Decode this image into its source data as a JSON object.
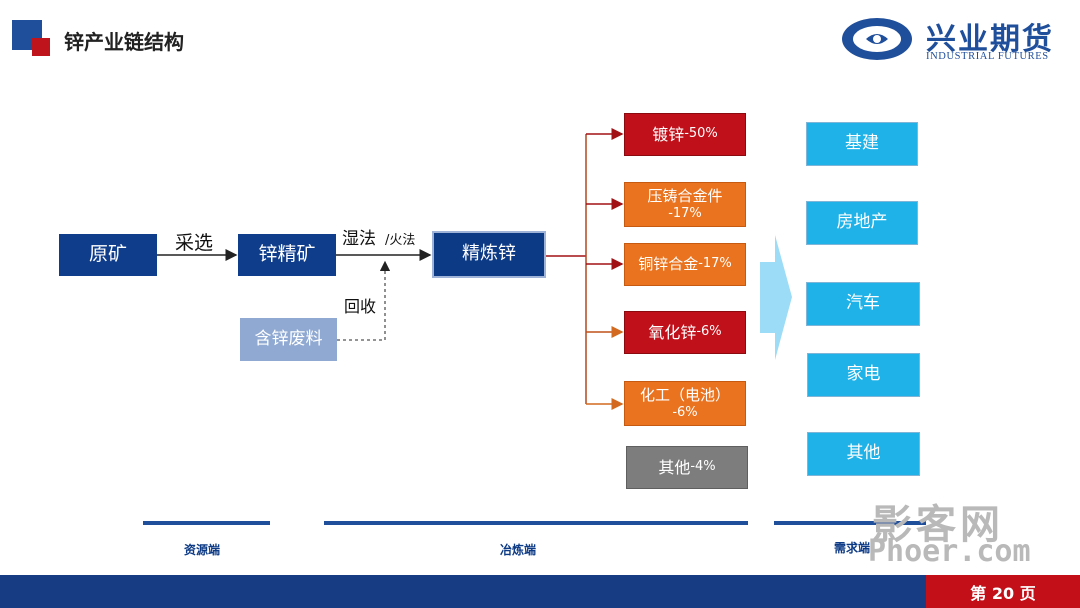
{
  "header": {
    "title": "锌产业链结构",
    "brand_cn": "兴业期货",
    "brand_en": "INDUSTRIAL FUTURES"
  },
  "flow": {
    "raw_ore": "原矿",
    "mining_label": "采选",
    "zinc_concentrate": "锌精矿",
    "wet_process": "湿法",
    "fire_process": "/火法",
    "refined_zinc": "精炼锌",
    "recycle_label": "回收",
    "zinc_scrap": "含锌废料"
  },
  "uses": [
    {
      "label": "镀锌",
      "pct": "-50%"
    },
    {
      "label": "压铸合金件",
      "pct": "-17%"
    },
    {
      "label": "铜锌合金",
      "pct": "-17%"
    },
    {
      "label": "氧化锌",
      "pct": "-6%"
    },
    {
      "label": "化工（电池）",
      "pct": "-6%"
    },
    {
      "label": "其他",
      "pct": "-4%"
    }
  ],
  "demand": [
    "基建",
    "房地产",
    "汽车",
    "家电",
    "其他"
  ],
  "segments": {
    "resource": "资源端",
    "smelting": "冶炼端",
    "demand": "需求端"
  },
  "footer": {
    "page": "第 20 页"
  },
  "watermark": {
    "line1": "影客网",
    "line2": "Phoer.com"
  },
  "colors": {
    "navy": "#0f3d8c",
    "red": "#c0101a",
    "orange": "#e9731f",
    "grey": "#7d7d7d",
    "cyan": "#1eb2e8",
    "light_blue": "#8fa9d2"
  }
}
